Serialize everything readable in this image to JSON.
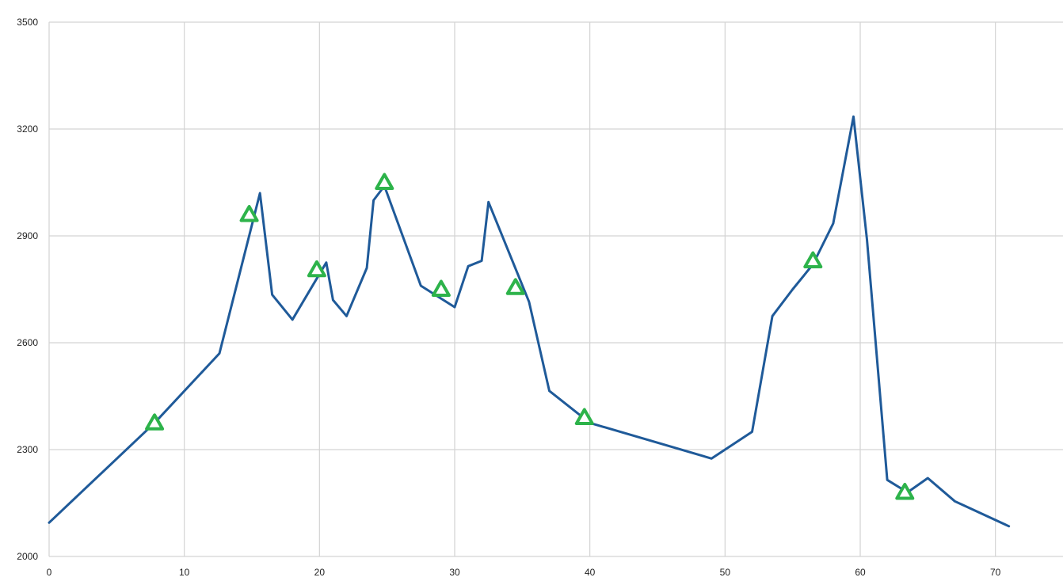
{
  "chart_data": {
    "type": "line",
    "title": "",
    "xlabel": "",
    "ylabel": "",
    "xlim": [
      0,
      75
    ],
    "ylim": [
      2000,
      3500
    ],
    "x_ticks": [
      0,
      10,
      20,
      30,
      40,
      50,
      60,
      70
    ],
    "y_ticks": [
      2000,
      2300,
      2600,
      2900,
      3200,
      3500
    ],
    "grid": true,
    "colors": {
      "line": "#1f5a99",
      "marker": "#2db34a",
      "grid": "#d3d3d3"
    },
    "series": [
      {
        "points": [
          [
            0,
            2095
          ],
          [
            7.8,
            2375
          ],
          [
            12.6,
            2570
          ],
          [
            15.6,
            3020
          ],
          [
            16.5,
            2735
          ],
          [
            18,
            2665
          ],
          [
            20.5,
            2825
          ],
          [
            21,
            2720
          ],
          [
            22,
            2675
          ],
          [
            23.5,
            2810
          ],
          [
            24,
            3000
          ],
          [
            24.8,
            3040
          ],
          [
            27.5,
            2760
          ],
          [
            30,
            2700
          ],
          [
            31,
            2815
          ],
          [
            32,
            2830
          ],
          [
            32.5,
            2995
          ],
          [
            35.5,
            2715
          ],
          [
            37,
            2465
          ],
          [
            40,
            2375
          ],
          [
            49,
            2275
          ],
          [
            52,
            2350
          ],
          [
            53.5,
            2675
          ],
          [
            55,
            2750
          ],
          [
            56.5,
            2820
          ],
          [
            58,
            2935
          ],
          [
            59.5,
            3235
          ],
          [
            60.5,
            2890
          ],
          [
            62,
            2215
          ],
          [
            63.5,
            2180
          ],
          [
            65,
            2220
          ],
          [
            67,
            2155
          ],
          [
            71,
            2085
          ]
        ]
      }
    ],
    "markers": [
      {
        "x": 7.8,
        "y": 2375
      },
      {
        "x": 14.8,
        "y": 2960
      },
      {
        "x": 19.8,
        "y": 2805
      },
      {
        "x": 24.8,
        "y": 3050
      },
      {
        "x": 29,
        "y": 2750
      },
      {
        "x": 34.5,
        "y": 2755
      },
      {
        "x": 39.6,
        "y": 2390
      },
      {
        "x": 56.5,
        "y": 2830
      },
      {
        "x": 63.3,
        "y": 2180
      }
    ]
  }
}
